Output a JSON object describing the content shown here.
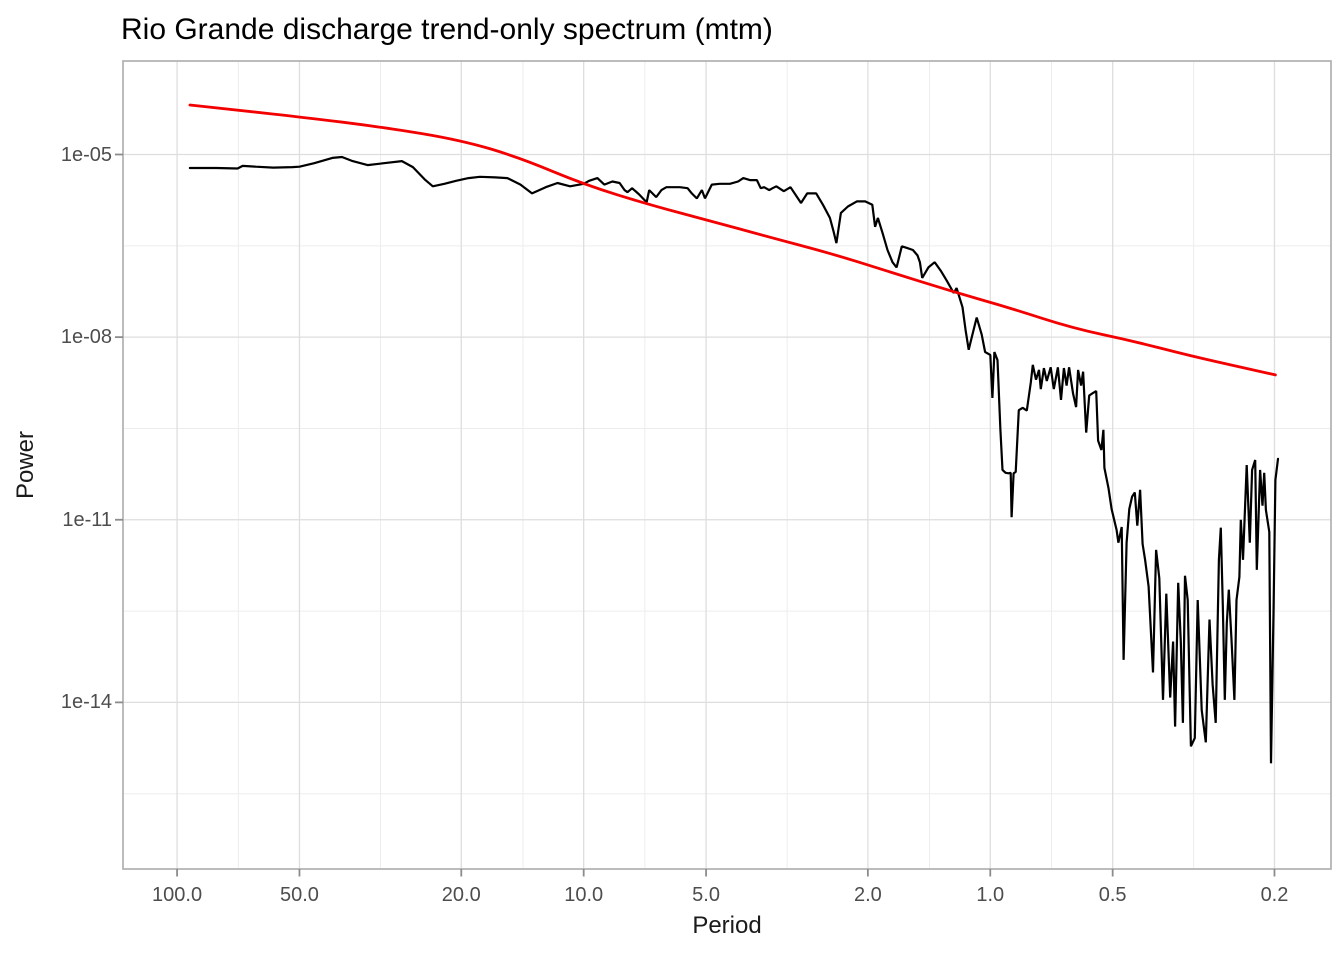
{
  "title": "Rio Grande discharge trend-only spectrum (mtm)",
  "axes": {
    "x": {
      "label": "Period",
      "breaks": [
        100,
        50,
        20,
        10,
        5,
        2,
        1,
        0.5,
        0.2
      ],
      "tick_labels": [
        "100.0",
        "50.0",
        "20.0",
        "10.0",
        "5.0",
        "2.0",
        "1.0",
        "0.5",
        "0.2"
      ],
      "minor_breaks": [
        70.7,
        31.6,
        14.1,
        7.07,
        3.16,
        1.41,
        0.707,
        0.316
      ],
      "scale": "log10, period decreasing left to right"
    },
    "y": {
      "label": "Power",
      "breaks": [
        1e-05,
        1e-08,
        1e-11,
        1e-14
      ],
      "tick_labels": [
        "1e-05",
        "1e-08",
        "1e-11",
        "1e-14"
      ],
      "minor_breaks": [
        3.16e-07,
        3.16e-10,
        3.16e-13,
        3.16e-16
      ],
      "scale": "log10"
    }
  },
  "colors": {
    "spectrum_line": "#000000",
    "rednoise_line": "#F30000",
    "grid_major": "#DEDEDE",
    "grid_minor": "#EDEDED",
    "panel_border": "#ACACAC",
    "tick_mark": "#8C8C8C",
    "tick_label": "#4D4D4D",
    "axis_title": "#1A1A1A",
    "title": "#000000"
  },
  "chart_data": {
    "type": "line",
    "title": "Rio Grande discharge trend-only spectrum (mtm)",
    "xlabel": "Period",
    "ylabel": "Power",
    "grid": true,
    "legend": "none",
    "x_domain_log10": [
      2.133,
      -0.838
    ],
    "y_domain_log10": [
      -3.464,
      -16.737
    ],
    "series": [
      {
        "name": "mtm-spectrum",
        "color": "#000000",
        "points": [
          [
            93,
            6e-06
          ],
          [
            80,
            6e-06
          ],
          [
            71,
            5.9e-06
          ],
          [
            69,
            6.5e-06
          ],
          [
            64,
            6.3e-06
          ],
          [
            58,
            6.1e-06
          ],
          [
            52,
            6.2e-06
          ],
          [
            50,
            6.3e-06
          ],
          [
            46,
            7.2e-06
          ],
          [
            41.5,
            8.8e-06
          ],
          [
            39.3,
            9.1e-06
          ],
          [
            37,
            7.8e-06
          ],
          [
            34,
            6.7e-06
          ],
          [
            31,
            7.2e-06
          ],
          [
            28,
            7.8e-06
          ],
          [
            26.3,
            6.2e-06
          ],
          [
            24.6,
            3.9e-06
          ],
          [
            23.5,
            3e-06
          ],
          [
            22,
            3.3e-06
          ],
          [
            20.6,
            3.7e-06
          ],
          [
            19.2,
            4.1e-06
          ],
          [
            18,
            4.3e-06
          ],
          [
            16.5,
            4.2e-06
          ],
          [
            15.4,
            4.1e-06
          ],
          [
            14.3,
            3.2e-06
          ],
          [
            13.4,
            2.3e-06
          ],
          [
            12.4,
            2.9e-06
          ],
          [
            11.6,
            3.4e-06
          ],
          [
            10.8,
            3e-06
          ],
          [
            10.0,
            3.3e-06
          ],
          [
            9.7,
            3.7e-06
          ],
          [
            9.25,
            4.1e-06
          ],
          [
            8.9,
            3.2e-06
          ],
          [
            8.5,
            3.6e-06
          ],
          [
            8.16,
            3.4e-06
          ],
          [
            7.93,
            2.6e-06
          ],
          [
            7.8,
            2.4e-06
          ],
          [
            7.6,
            2.8e-06
          ],
          [
            7.3,
            2.2e-06
          ],
          [
            7.1,
            1.8e-06
          ],
          [
            7.0,
            1.66e-06
          ],
          [
            6.9,
            2.6e-06
          ],
          [
            6.63,
            2e-06
          ],
          [
            6.44,
            2.6e-06
          ],
          [
            6.26,
            2.9e-06
          ],
          [
            6.08,
            2.9e-06
          ],
          [
            5.8,
            2.9e-06
          ],
          [
            5.55,
            2.8e-06
          ],
          [
            5.42,
            2.3e-06
          ],
          [
            5.27,
            1.9e-06
          ],
          [
            5.12,
            2.6e-06
          ],
          [
            5.03,
            1.9e-06
          ],
          [
            4.84,
            3.2e-06
          ],
          [
            4.63,
            3.3e-06
          ],
          [
            4.37,
            3.3e-06
          ],
          [
            4.17,
            3.6e-06
          ],
          [
            4.05,
            4.1e-06
          ],
          [
            3.9,
            3.8e-06
          ],
          [
            3.75,
            3.8e-06
          ],
          [
            3.67,
            2.8e-06
          ],
          [
            3.6,
            2.9e-06
          ],
          [
            3.5,
            2.6e-06
          ],
          [
            3.43,
            2.8e-06
          ],
          [
            3.36,
            3e-06
          ],
          [
            3.22,
            2.5e-06
          ],
          [
            3.1,
            2.9e-06
          ],
          [
            2.92,
            1.6e-06
          ],
          [
            2.82,
            2.3e-06
          ],
          [
            2.68,
            2.3e-06
          ],
          [
            2.58,
            1.5e-06
          ],
          [
            2.48,
            9.1e-07
          ],
          [
            2.43,
            5.5e-07
          ],
          [
            2.39,
            3.5e-07
          ],
          [
            2.33,
            1.1e-06
          ],
          [
            2.24,
            1.4e-06
          ],
          [
            2.13,
            1.7e-06
          ],
          [
            2.03,
            1.7e-06
          ],
          [
            1.95,
            1.5e-06
          ],
          [
            1.92,
            6.5e-07
          ],
          [
            1.89,
            9.1e-07
          ],
          [
            1.84,
            5.1e-07
          ],
          [
            1.79,
            2.7e-07
          ],
          [
            1.74,
            1.7e-07
          ],
          [
            1.7,
            1.4e-07
          ],
          [
            1.65,
            3.1e-07
          ],
          [
            1.6,
            2.9e-07
          ],
          [
            1.55,
            2.7e-07
          ],
          [
            1.51,
            2.2e-07
          ],
          [
            1.49,
            1.7e-07
          ],
          [
            1.47,
            9.4e-08
          ],
          [
            1.42,
            1.4e-07
          ],
          [
            1.37,
            1.7e-07
          ],
          [
            1.32,
            1.2e-07
          ],
          [
            1.28,
            8.5e-08
          ],
          [
            1.23,
            5.3e-08
          ],
          [
            1.21,
            6.4e-08
          ],
          [
            1.17,
            3.1e-08
          ],
          [
            1.15,
            1.3e-08
          ],
          [
            1.13,
            6.2e-09
          ],
          [
            1.11,
            1e-08
          ],
          [
            1.08,
            2.1e-08
          ],
          [
            1.05,
            1.1e-08
          ],
          [
            1.03,
            5.7e-09
          ],
          [
            1.0,
            5.1e-09
          ],
          [
            0.988,
            1e-09
          ],
          [
            0.977,
            5.7e-09
          ],
          [
            0.96,
            4.2e-09
          ],
          [
            0.944,
            3e-10
          ],
          [
            0.933,
            6.6e-11
          ],
          [
            0.917,
            5.9e-11
          ],
          [
            0.902,
            5.8e-11
          ],
          [
            0.891,
            5.9e-11
          ],
          [
            0.886,
            1.1e-11
          ],
          [
            0.876,
            5.8e-11
          ],
          [
            0.866,
            6.1e-11
          ],
          [
            0.851,
            6.3e-10
          ],
          [
            0.832,
            6.9e-10
          ],
          [
            0.813,
            6.2e-10
          ],
          [
            0.795,
            1.8e-09
          ],
          [
            0.786,
            3.5e-09
          ],
          [
            0.772,
            2e-09
          ],
          [
            0.759,
            2.9e-09
          ],
          [
            0.751,
            1.4e-09
          ],
          [
            0.738,
            3.1e-09
          ],
          [
            0.726,
            1.9e-09
          ],
          [
            0.71,
            3.2e-09
          ],
          [
            0.698,
            1.4e-09
          ],
          [
            0.682,
            3.2e-09
          ],
          [
            0.67,
            9.3e-10
          ],
          [
            0.659,
            3.1e-09
          ],
          [
            0.649,
            1.6e-09
          ],
          [
            0.64,
            3.2e-09
          ],
          [
            0.626,
            1.2e-09
          ],
          [
            0.615,
            7.1e-10
          ],
          [
            0.608,
            2.9e-09
          ],
          [
            0.598,
            1.6e-09
          ],
          [
            0.591,
            2.7e-09
          ],
          [
            0.581,
            2.7e-10
          ],
          [
            0.571,
            1.1e-09
          ],
          [
            0.56,
            1.2e-09
          ],
          [
            0.549,
            1.3e-09
          ],
          [
            0.543,
            2e-10
          ],
          [
            0.533,
            1.4e-10
          ],
          [
            0.527,
            3e-10
          ],
          [
            0.524,
            7.1e-11
          ],
          [
            0.512,
            3.3e-11
          ],
          [
            0.503,
            1.5e-11
          ],
          [
            0.489,
            6.8e-12
          ],
          [
            0.484,
            4.2e-12
          ],
          [
            0.475,
            7.6e-12
          ],
          [
            0.47,
            5e-14
          ],
          [
            0.462,
            4.2e-12
          ],
          [
            0.455,
            1.5e-11
          ],
          [
            0.448,
            2.4e-11
          ],
          [
            0.441,
            2.8e-11
          ],
          [
            0.435,
            8e-12
          ],
          [
            0.428,
            3.1e-11
          ],
          [
            0.422,
            4e-12
          ],
          [
            0.416,
            2.2e-12
          ],
          [
            0.408,
            8e-13
          ],
          [
            0.398,
            3.1e-14
          ],
          [
            0.391,
            3.2e-12
          ],
          [
            0.384,
            1.1e-12
          ],
          [
            0.376,
            1.1e-14
          ],
          [
            0.369,
            6.1e-13
          ],
          [
            0.361,
            1.2e-14
          ],
          [
            0.355,
            1e-13
          ],
          [
            0.351,
            4e-15
          ],
          [
            0.345,
            9.2e-13
          ],
          [
            0.34,
            1e-13
          ],
          [
            0.336,
            4.6e-15
          ],
          [
            0.332,
            1.2e-12
          ],
          [
            0.327,
            4.8e-13
          ],
          [
            0.321,
            1.9e-15
          ],
          [
            0.314,
            2.6e-15
          ],
          [
            0.309,
            4.8e-13
          ],
          [
            0.302,
            7.5e-15
          ],
          [
            0.295,
            2.2e-15
          ],
          [
            0.289,
            2.3e-13
          ],
          [
            0.284,
            2e-14
          ],
          [
            0.279,
            4.6e-15
          ],
          [
            0.274,
            2.2e-12
          ],
          [
            0.271,
            7.4e-12
          ],
          [
            0.268,
            4e-13
          ],
          [
            0.265,
            1.1e-14
          ],
          [
            0.262,
            2e-13
          ],
          [
            0.259,
            7.1e-13
          ],
          [
            0.255,
            1e-13
          ],
          [
            0.251,
            1.1e-14
          ],
          [
            0.248,
            4.8e-13
          ],
          [
            0.244,
            1.15e-12
          ],
          [
            0.242,
            1e-11
          ],
          [
            0.239,
            2.2e-12
          ],
          [
            0.234,
            7.9e-11
          ],
          [
            0.23,
            4.2e-12
          ],
          [
            0.227,
            6.6e-11
          ],
          [
            0.223,
            9.6e-11
          ],
          [
            0.221,
            1.5e-12
          ],
          [
            0.217,
            6.6e-11
          ],
          [
            0.214,
            1.7e-11
          ],
          [
            0.212,
            5.9e-11
          ],
          [
            0.21,
            1.45e-11
          ],
          [
            0.206,
            6.3e-12
          ],
          [
            0.204,
            1e-15
          ],
          [
            0.201,
            3.7e-13
          ],
          [
            0.199,
            4.5e-11
          ],
          [
            0.196,
            1e-10
          ]
        ]
      },
      {
        "name": "red-noise-background",
        "color": "#F30000",
        "points": [
          [
            93,
            6.5e-05
          ],
          [
            68,
            5.2e-05
          ],
          [
            49.3,
            4.1e-05
          ],
          [
            31.1,
            2.8e-05
          ],
          [
            20.1,
            1.73e-05
          ],
          [
            14.3,
            8.8e-06
          ],
          [
            9.96,
            3.2e-06
          ],
          [
            6.86,
            1.48e-06
          ],
          [
            4.87,
            8.1e-07
          ],
          [
            3.5,
            4.4e-07
          ],
          [
            2.48,
            2.4e-07
          ],
          [
            1.76,
            1.17e-07
          ],
          [
            1.25,
            5.7e-08
          ],
          [
            0.891,
            3e-08
          ],
          [
            0.627,
            1.4e-08
          ],
          [
            0.448,
            8.7e-09
          ],
          [
            0.321,
            4.9e-09
          ],
          [
            0.241,
            3.2e-09
          ],
          [
            0.199,
            2.4e-09
          ]
        ]
      }
    ]
  }
}
